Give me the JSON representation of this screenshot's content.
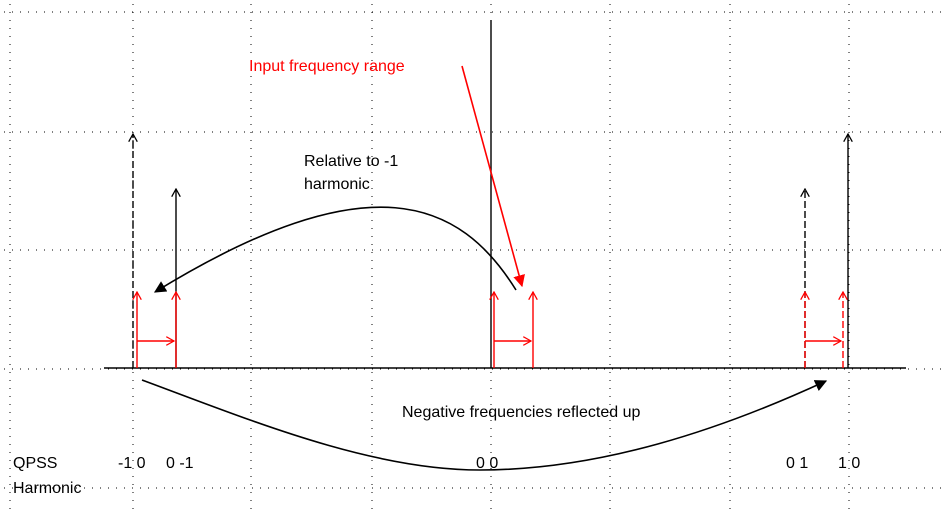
{
  "annotations": {
    "input_range": "Input frequency range",
    "relative_line1": "Relative to -1",
    "relative_line2": "harmonic",
    "negative": "Negative frequencies reflected up"
  },
  "row_label": {
    "line1": "QPSS",
    "line2": "Harmonic"
  },
  "harmonics": [
    "-1 0",
    "0 -1",
    "0 0",
    "0 1",
    "1 0"
  ],
  "colors": {
    "black": "#000000",
    "red": "#ff0000",
    "grid": "#000000"
  }
}
